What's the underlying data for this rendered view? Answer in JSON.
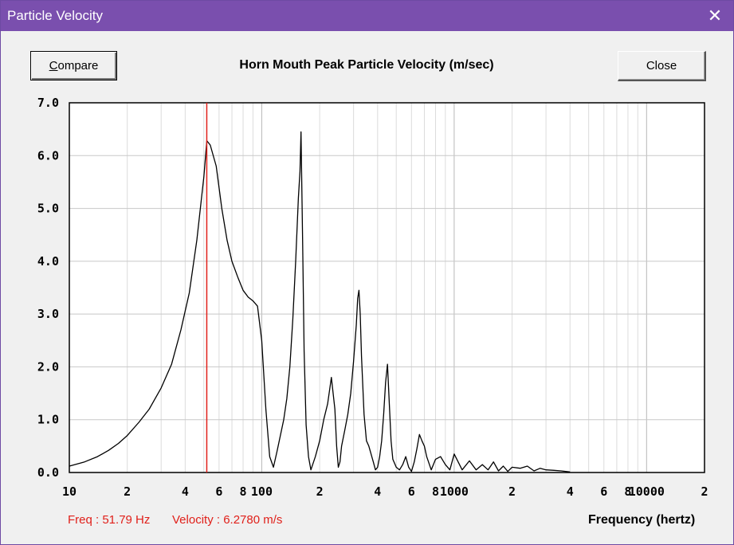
{
  "window": {
    "title": "Particle Velocity",
    "close_glyph": "✕"
  },
  "buttons": {
    "compare_first": "C",
    "compare_rest": "ompare",
    "close": "Close"
  },
  "readout": {
    "freq": "Freq : 51.79 Hz",
    "velocity": "Velocity : 6.2780 m/s"
  },
  "chart_data": {
    "type": "line",
    "title": "Horn Mouth Peak Particle Velocity (m/sec)",
    "xlabel": "Frequency (hertz)",
    "ylabel": "",
    "x_scale": "log",
    "xlim": [
      10,
      20000
    ],
    "ylim": [
      0,
      7
    ],
    "grid": true,
    "y_ticks": [
      "0.0",
      "1.0",
      "2.0",
      "3.0",
      "4.0",
      "5.0",
      "6.0",
      "7.0"
    ],
    "x_tick_labels": [
      {
        "v": 10,
        "t": "10"
      },
      {
        "v": 20,
        "t": "2"
      },
      {
        "v": 40,
        "t": "4"
      },
      {
        "v": 60,
        "t": "6"
      },
      {
        "v": 80,
        "t": "8"
      },
      {
        "v": 100,
        "t": "100"
      },
      {
        "v": 200,
        "t": "2"
      },
      {
        "v": 400,
        "t": "4"
      },
      {
        "v": 600,
        "t": "6"
      },
      {
        "v": 800,
        "t": "8"
      },
      {
        "v": 1000,
        "t": "1000"
      },
      {
        "v": 2000,
        "t": "2"
      },
      {
        "v": 4000,
        "t": "4"
      },
      {
        "v": 6000,
        "t": "6"
      },
      {
        "v": 8000,
        "t": "8"
      },
      {
        "v": 10000,
        "t": "10000"
      },
      {
        "v": 20000,
        "t": "2"
      }
    ],
    "cursor": {
      "x": 51.79,
      "color": "#e0201a"
    },
    "line_color": "#000000",
    "series": [
      {
        "x": [
          10,
          12,
          14,
          16,
          18,
          20,
          23,
          26,
          30,
          34,
          38,
          42,
          46,
          50,
          51.8,
          54,
          58,
          62,
          66,
          70,
          75,
          80,
          85,
          90,
          95,
          100,
          105,
          110,
          115,
          120,
          125,
          130,
          135,
          140,
          145,
          150,
          155,
          158,
          160,
          163,
          166,
          170,
          175,
          180,
          190,
          200,
          210,
          220,
          230,
          240,
          245,
          250,
          255,
          260,
          270,
          280,
          290,
          300,
          310,
          315,
          320,
          325,
          330,
          340,
          350,
          360,
          370,
          380,
          390,
          400,
          410,
          420,
          430,
          440,
          450,
          460,
          470,
          480,
          500,
          520,
          540,
          560,
          580,
          600,
          620,
          640,
          660,
          680,
          700,
          720,
          760,
          800,
          850,
          900,
          950,
          1000,
          1100,
          1200,
          1300,
          1400,
          1500,
          1600,
          1700,
          1800,
          1900,
          2000,
          2200,
          2400,
          2600,
          2800,
          3000,
          3300,
          3600,
          4000
        ],
        "y": [
          0.12,
          0.2,
          0.3,
          0.42,
          0.55,
          0.7,
          0.95,
          1.2,
          1.6,
          2.05,
          2.7,
          3.4,
          4.4,
          5.6,
          6.28,
          6.2,
          5.8,
          5.0,
          4.4,
          4.0,
          3.7,
          3.45,
          3.32,
          3.25,
          3.15,
          2.5,
          1.2,
          0.3,
          0.1,
          0.4,
          0.7,
          1.0,
          1.4,
          2.0,
          2.9,
          4.0,
          5.2,
          5.7,
          6.45,
          4.4,
          2.3,
          0.9,
          0.3,
          0.05,
          0.3,
          0.6,
          1.0,
          1.3,
          1.8,
          1.2,
          0.5,
          0.1,
          0.2,
          0.5,
          0.8,
          1.1,
          1.5,
          2.1,
          2.8,
          3.3,
          3.45,
          3.0,
          2.2,
          1.1,
          0.6,
          0.5,
          0.35,
          0.2,
          0.05,
          0.1,
          0.3,
          0.6,
          1.1,
          1.7,
          2.05,
          1.3,
          0.6,
          0.25,
          0.1,
          0.05,
          0.15,
          0.3,
          0.1,
          0.02,
          0.2,
          0.45,
          0.72,
          0.6,
          0.5,
          0.3,
          0.05,
          0.25,
          0.3,
          0.15,
          0.05,
          0.35,
          0.05,
          0.22,
          0.05,
          0.15,
          0.05,
          0.2,
          0.03,
          0.12,
          0.02,
          0.1,
          0.08,
          0.12,
          0.03,
          0.08,
          0.05,
          0.04,
          0.03,
          0.01
        ]
      }
    ]
  }
}
